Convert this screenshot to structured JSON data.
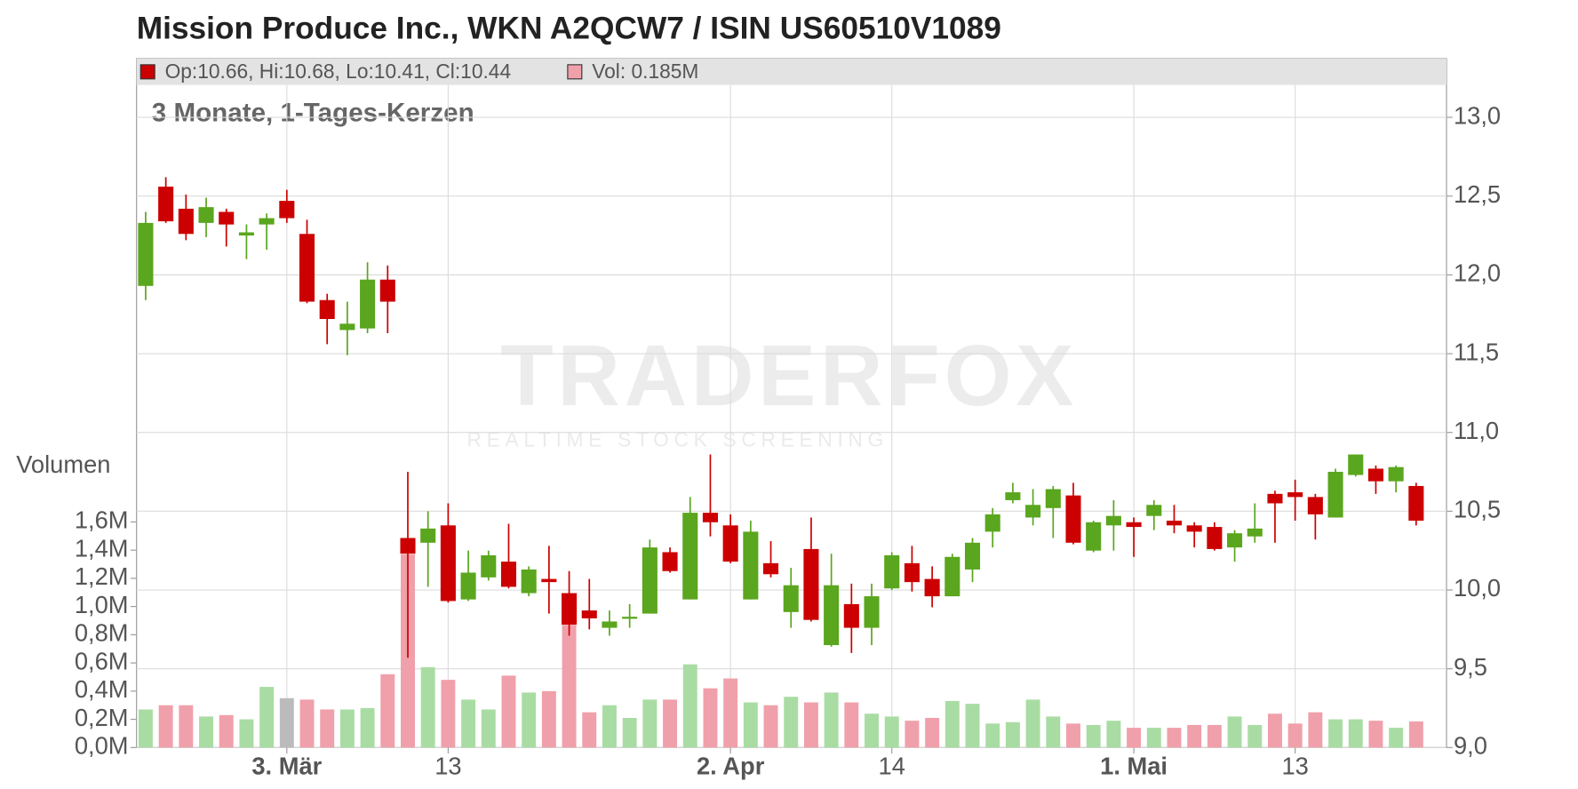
{
  "chart_data": {
    "type": "candlestick",
    "title": "Mission Produce Inc., WKN A2QCW7 / ISIN US60510V1089",
    "subtitle": "3 Monate, 1-Tages-Kerzen",
    "volume_axis_label": "Volumen",
    "watermark": {
      "brand": "TRADERFOX",
      "tagline": "REALTIME STOCK SCREENING"
    },
    "legend": [
      {
        "label": "Op:10.66, Hi:10.68, Lo:10.41, Cl:10.44",
        "color": "#cc0000"
      },
      {
        "label": "Vol: 0.185M",
        "color": "#f0a0aa"
      }
    ],
    "categories": [
      null,
      null,
      null,
      null,
      null,
      null,
      null,
      "3. Mär",
      null,
      null,
      null,
      null,
      null,
      null,
      null,
      "13",
      null,
      null,
      null,
      null,
      null,
      null,
      null,
      null,
      null,
      null,
      null,
      null,
      null,
      "2. Apr",
      null,
      null,
      null,
      null,
      null,
      null,
      null,
      "14",
      null,
      null,
      null,
      null,
      null,
      null,
      null,
      null,
      null,
      null,
      null,
      "1. Mai",
      null,
      null,
      null,
      null,
      null,
      null,
      null,
      "13",
      null,
      null,
      null,
      null,
      null,
      null
    ],
    "open": [
      11.93,
      12.56,
      12.42,
      12.33,
      12.4,
      12.25,
      12.32,
      12.47,
      12.26,
      11.84,
      11.65,
      11.66,
      11.97,
      10.33,
      10.3,
      10.41,
      9.94,
      10.08,
      10.18,
      9.98,
      10.07,
      9.98,
      9.87,
      9.76,
      9.82,
      9.85,
      10.24,
      9.94,
      10.49,
      10.41,
      9.94,
      10.17,
      9.86,
      10.26,
      9.65,
      9.91,
      9.76,
      10.01,
      10.17,
      10.07,
      9.96,
      10.13,
      10.37,
      10.57,
      10.46,
      10.52,
      10.6,
      10.25,
      10.41,
      10.43,
      10.47,
      10.44,
      10.41,
      10.4,
      10.27,
      10.34,
      10.61,
      10.62,
      10.59,
      10.46,
      10.73,
      10.77,
      10.69,
      10.66
    ],
    "high": [
      12.4,
      12.62,
      12.51,
      12.49,
      12.42,
      12.32,
      12.39,
      12.54,
      12.35,
      11.88,
      11.83,
      12.08,
      12.06,
      10.75,
      10.5,
      10.55,
      10.25,
      10.25,
      10.42,
      10.15,
      10.28,
      10.12,
      10.07,
      9.87,
      9.91,
      10.32,
      10.27,
      10.59,
      10.86,
      10.48,
      10.44,
      10.31,
      10.14,
      10.46,
      10.23,
      10.04,
      10.04,
      10.24,
      10.28,
      10.15,
      10.23,
      10.33,
      10.52,
      10.68,
      10.64,
      10.66,
      10.68,
      10.44,
      10.57,
      10.46,
      10.57,
      10.54,
      10.43,
      10.43,
      10.38,
      10.55,
      10.63,
      10.7,
      10.61,
      10.77,
      10.86,
      10.79,
      10.79,
      10.68
    ],
    "low": [
      11.84,
      12.33,
      12.22,
      12.24,
      12.18,
      12.1,
      12.16,
      12.33,
      11.82,
      11.56,
      11.49,
      11.63,
      11.63,
      9.57,
      10.02,
      9.92,
      9.93,
      10.06,
      10.01,
      9.96,
      9.85,
      9.71,
      9.75,
      9.71,
      9.76,
      9.85,
      10.11,
      9.94,
      10.34,
      10.17,
      9.94,
      10.08,
      9.76,
      9.8,
      9.64,
      9.6,
      9.65,
      10.0,
      9.99,
      9.89,
      9.96,
      10.05,
      10.27,
      10.55,
      10.41,
      10.33,
      10.29,
      10.24,
      10.25,
      10.21,
      10.38,
      10.36,
      10.27,
      10.25,
      10.18,
      10.3,
      10.3,
      10.44,
      10.32,
      10.46,
      10.72,
      10.61,
      10.62,
      10.41
    ],
    "close": [
      12.33,
      12.34,
      12.26,
      12.43,
      12.32,
      12.27,
      12.36,
      12.36,
      11.83,
      11.72,
      11.69,
      11.97,
      11.83,
      10.23,
      10.39,
      9.93,
      10.11,
      10.22,
      10.02,
      10.13,
      10.05,
      9.78,
      9.82,
      9.8,
      9.83,
      10.27,
      10.12,
      10.49,
      10.43,
      10.18,
      10.37,
      10.1,
      10.03,
      9.81,
      10.03,
      9.76,
      9.96,
      10.22,
      10.05,
      9.96,
      10.21,
      10.3,
      10.48,
      10.62,
      10.54,
      10.64,
      10.3,
      10.43,
      10.47,
      10.4,
      10.54,
      10.41,
      10.37,
      10.26,
      10.36,
      10.39,
      10.55,
      10.59,
      10.48,
      10.75,
      10.86,
      10.69,
      10.78,
      10.44
    ],
    "volume": [
      0.27,
      0.3,
      0.3,
      0.22,
      0.23,
      0.2,
      0.43,
      0.35,
      0.34,
      0.27,
      0.27,
      0.28,
      0.52,
      1.37,
      0.57,
      0.48,
      0.34,
      0.27,
      0.51,
      0.39,
      0.4,
      0.87,
      0.25,
      0.3,
      0.21,
      0.34,
      0.34,
      0.59,
      0.42,
      0.49,
      0.32,
      0.3,
      0.36,
      0.32,
      0.39,
      0.32,
      0.24,
      0.22,
      0.19,
      0.21,
      0.33,
      0.31,
      0.17,
      0.18,
      0.34,
      0.22,
      0.17,
      0.16,
      0.19,
      0.14,
      0.14,
      0.14,
      0.16,
      0.16,
      0.22,
      0.16,
      0.24,
      0.17,
      0.25,
      0.2,
      0.2,
      0.19,
      0.14,
      0.185
    ],
    "up_color": "#5aa61e",
    "down_color": "#cc0000",
    "volume_colors": [
      "#a9dca3",
      "#f0a0aa",
      "#f0a0aa",
      "#a9dca3",
      "#f0a0aa",
      "#a9dca3",
      "#a9dca3",
      "#bbbbbb",
      "#f0a0aa",
      "#f0a0aa",
      "#a9dca3",
      "#a9dca3",
      "#f0a0aa",
      "#f0a0aa",
      "#a9dca3",
      "#f0a0aa",
      "#a9dca3",
      "#a9dca3",
      "#f0a0aa",
      "#a9dca3",
      "#f0a0aa",
      "#f0a0aa",
      "#f0a0aa",
      "#a9dca3",
      "#a9dca3",
      "#a9dca3",
      "#f0a0aa",
      "#a9dca3",
      "#f0a0aa",
      "#f0a0aa",
      "#a9dca3",
      "#f0a0aa",
      "#a9dca3",
      "#f0a0aa",
      "#a9dca3",
      "#f0a0aa",
      "#a9dca3",
      "#a9dca3",
      "#f0a0aa",
      "#f0a0aa",
      "#a9dca3",
      "#a9dca3",
      "#a9dca3",
      "#a9dca3",
      "#a9dca3",
      "#a9dca3",
      "#f0a0aa",
      "#a9dca3",
      "#a9dca3",
      "#f0a0aa",
      "#a9dca3",
      "#f0a0aa",
      "#f0a0aa",
      "#f0a0aa",
      "#a9dca3",
      "#a9dca3",
      "#f0a0aa",
      "#f0a0aa",
      "#f0a0aa",
      "#a9dca3",
      "#a9dca3",
      "#f0a0aa",
      "#a9dca3",
      "#f0a0aa"
    ],
    "ylim": [
      9.0,
      13.0
    ],
    "yticks": [
      {
        "value": 9.0,
        "label": "9,0"
      },
      {
        "value": 9.5,
        "label": "9,5"
      },
      {
        "value": 10.0,
        "label": "10,0"
      },
      {
        "value": 10.5,
        "label": "10,5"
      },
      {
        "value": 11.0,
        "label": "11,0"
      },
      {
        "value": 11.5,
        "label": "11,5"
      },
      {
        "value": 12.0,
        "label": "12,0"
      },
      {
        "value": 12.5,
        "label": "12,5"
      },
      {
        "value": 13.0,
        "label": "13,0"
      }
    ],
    "volume_lim": [
      0,
      1.6
    ],
    "volume_ticks": [
      {
        "value": 0,
        "label": "0,0M"
      },
      {
        "value": 0.2,
        "label": "0,2M"
      },
      {
        "value": 0.4,
        "label": "0,4M"
      },
      {
        "value": 0.6,
        "label": "0,6M"
      },
      {
        "value": 0.8,
        "label": "0,8M"
      },
      {
        "value": 1.0,
        "label": "1,0M"
      },
      {
        "value": 1.2,
        "label": "1,2M"
      },
      {
        "value": 1.4,
        "label": "1,4M"
      },
      {
        "value": 1.6,
        "label": "1,6M"
      }
    ],
    "grid": true
  }
}
